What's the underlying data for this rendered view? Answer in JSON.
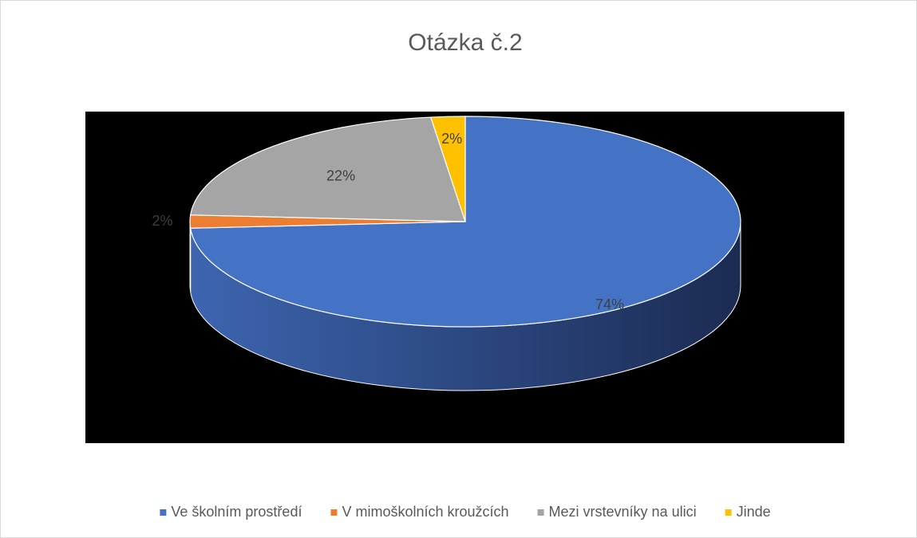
{
  "chart_data": {
    "type": "pie",
    "title": "Otázka č.2",
    "categories": [
      "Ve školním prostředí",
      "V mimoškolních kroužcích",
      "Mezi vrstevníky na ulici",
      "Jinde"
    ],
    "values": [
      74,
      2,
      22,
      2
    ],
    "value_labels": [
      "74%",
      "2%",
      "22%",
      "2%"
    ],
    "colors": [
      "#4472c4",
      "#ed7d31",
      "#a5a5a5",
      "#ffc000"
    ],
    "legend": "bottom"
  }
}
